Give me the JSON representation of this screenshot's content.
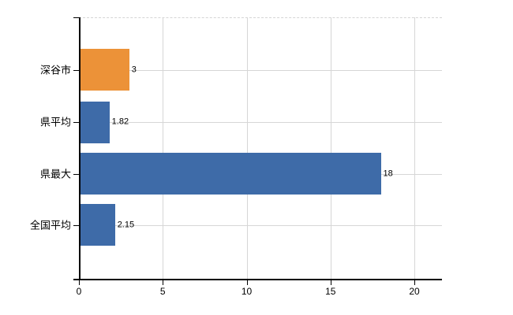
{
  "chart_data": {
    "type": "bar",
    "orientation": "horizontal",
    "title": "",
    "xlabel": "",
    "ylabel": "",
    "categories": [
      "深谷市",
      "県平均",
      "県最大",
      "全国平均"
    ],
    "values": [
      3,
      1.82,
      18,
      2.15
    ],
    "value_labels": [
      "3",
      "1.82",
      "18",
      "2.15"
    ],
    "x_ticks": [
      0,
      5,
      10,
      15,
      20
    ],
    "xlim": [
      0,
      21.6
    ],
    "grid": true,
    "legend": false,
    "highlight_category": "深谷市"
  },
  "colors": {
    "highlight_bar": "#EC9238",
    "default_bar": "#3E6BA8",
    "grid": "#D6D6D6",
    "axis": "#000000",
    "text": "#000000",
    "background": "#FFFFFF"
  }
}
